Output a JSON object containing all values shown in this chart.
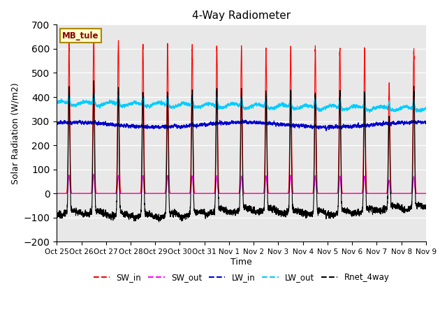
{
  "title": "4-Way Radiometer",
  "xlabel": "Time",
  "ylabel": "Solar Radiation (W/m2)",
  "ylim": [
    -200,
    700
  ],
  "yticks": [
    -200,
    -100,
    0,
    100,
    200,
    300,
    400,
    500,
    600,
    700
  ],
  "station_label": "MB_tule",
  "x_tick_labels": [
    "Oct 25",
    "Oct 26",
    "Oct 27",
    "Oct 28",
    "Oct 29",
    "Oct 30",
    "Oct 31",
    "Nov 1",
    "Nov 2",
    "Nov 3",
    "Nov 4",
    "Nov 5",
    "Nov 6",
    "Nov 7",
    "Nov 8",
    "Nov 9"
  ],
  "colors": {
    "SW_in": "#ff0000",
    "SW_out": "#ff00ff",
    "LW_in": "#0000cc",
    "LW_out": "#00ccff",
    "Rnet_4way": "#000000"
  },
  "bg_color": "#e8e8e8",
  "num_days": 15,
  "points_per_day": 288,
  "peak_sw_in": [
    620,
    660,
    635,
    630,
    615,
    610,
    615,
    610,
    600,
    600,
    600,
    600,
    600,
    460,
    605
  ]
}
